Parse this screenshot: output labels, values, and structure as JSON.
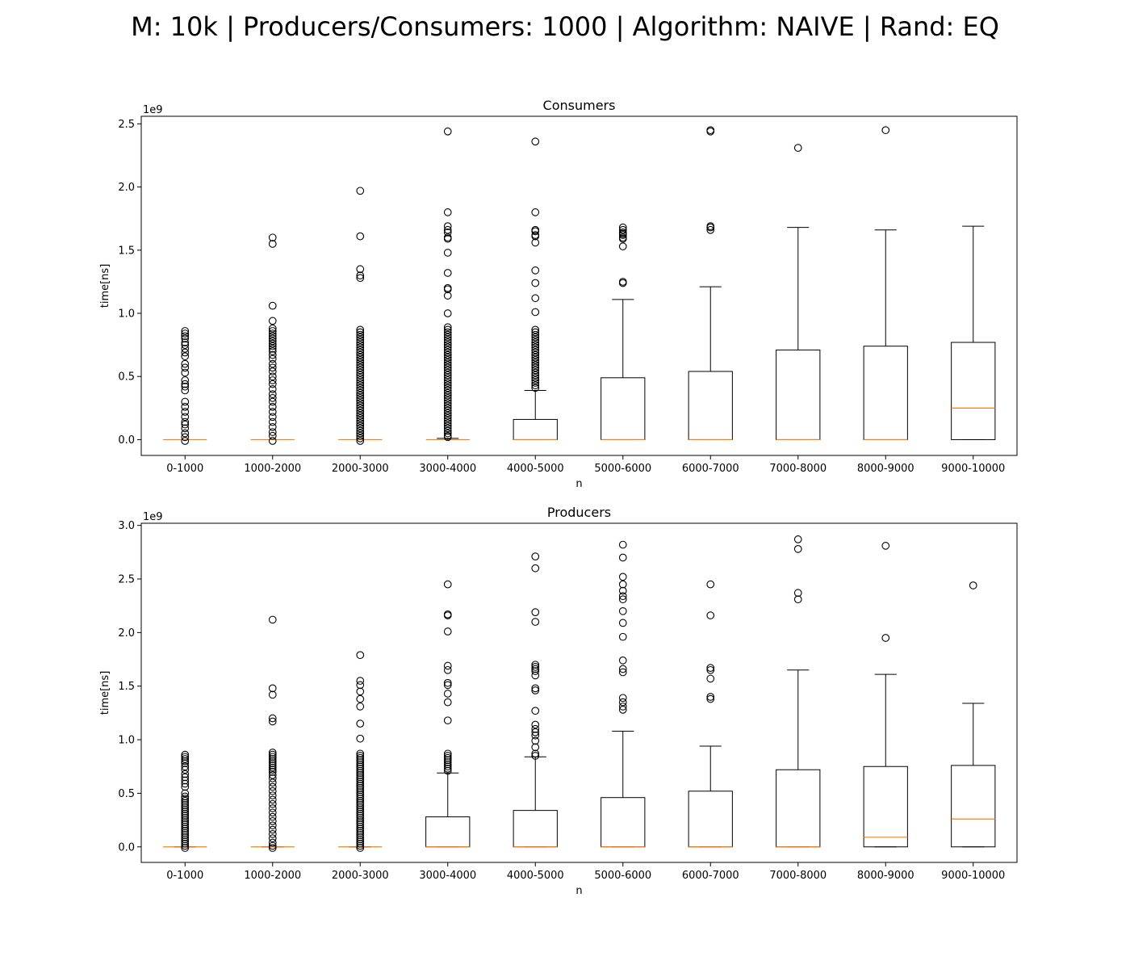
{
  "figure": {
    "suptitle": "M: 10k | Producers/Consumers: 1000 | Algorithm: NAIVE | Rand: EQ"
  },
  "colors": {
    "box_edge": "#000000",
    "median": "#ff7f0e",
    "flier_edge": "#000000",
    "background": "#ffffff"
  },
  "chart_data": [
    {
      "type": "boxplot",
      "title": "Consumers",
      "xlabel": "n",
      "ylabel": "time[ns]",
      "y_offset_text": "1e9",
      "ylim": [
        -0.125,
        2.56
      ],
      "yticks": [
        0.0,
        0.5,
        1.0,
        1.5,
        2.0,
        2.5
      ],
      "ytick_labels": [
        "0.0",
        "0.5",
        "1.0",
        "1.5",
        "2.0",
        "2.5"
      ],
      "categories": [
        "0-1000",
        "1000-2000",
        "2000-3000",
        "3000-4000",
        "4000-5000",
        "5000-6000",
        "6000-7000",
        "7000-8000",
        "8000-9000",
        "9000-10000"
      ],
      "boxes": [
        {
          "whislo": 0.0,
          "q1": 0.0,
          "med": 0.0,
          "q3": 0.0,
          "whishi": 0.0,
          "fliers": [
            0.86,
            0.84,
            0.82,
            0.8,
            0.77,
            0.75,
            0.72,
            0.69,
            0.66,
            0.6,
            0.57,
            0.53,
            0.47,
            0.44,
            0.42,
            0.39,
            0.3,
            0.26,
            0.22,
            0.18,
            0.14,
            0.12,
            0.09,
            0.05,
            0.02,
            -0.01
          ]
        },
        {
          "whislo": 0.0,
          "q1": 0.0,
          "med": 0.0,
          "q3": 0.0,
          "whishi": 0.0,
          "fliers": [
            1.6,
            1.55,
            1.06,
            0.94,
            0.88,
            0.86,
            0.84,
            0.82,
            0.8,
            0.78,
            0.76,
            0.74,
            0.72,
            0.7,
            0.67,
            0.64,
            0.6,
            0.57,
            0.54,
            0.5,
            0.47,
            0.44,
            0.4,
            0.36,
            0.33,
            0.3,
            0.26,
            0.22,
            0.18,
            0.14,
            0.1,
            0.06,
            0.03,
            -0.01
          ]
        },
        {
          "whislo": 0.0,
          "q1": 0.0,
          "med": 0.0,
          "q3": 0.0,
          "whishi": 0.0,
          "fliers": [
            1.97,
            1.61,
            1.35,
            1.3,
            1.28,
            0.87,
            0.85,
            0.83,
            0.81,
            0.79,
            0.77,
            0.75,
            0.73,
            0.71,
            0.69,
            0.67,
            0.65,
            0.63,
            0.61,
            0.59,
            0.57,
            0.55,
            0.53,
            0.51,
            0.49,
            0.47,
            0.45,
            0.43,
            0.41,
            0.39,
            0.37,
            0.35,
            0.33,
            0.31,
            0.29,
            0.27,
            0.25,
            0.23,
            0.21,
            0.19,
            0.17,
            0.15,
            0.13,
            0.11,
            0.09,
            0.07,
            0.05,
            0.03,
            0.01,
            -0.01
          ]
        },
        {
          "whislo": 0.0,
          "q1": 0.0,
          "med": 0.0,
          "q3": 0.0,
          "whishi": 0.01,
          "fliers": [
            2.44,
            1.8,
            1.69,
            1.66,
            1.64,
            1.6,
            1.59,
            1.48,
            1.32,
            1.2,
            1.19,
            1.14,
            1.0,
            0.89,
            0.87,
            0.85,
            0.83,
            0.81,
            0.79,
            0.77,
            0.75,
            0.73,
            0.71,
            0.69,
            0.67,
            0.65,
            0.63,
            0.61,
            0.59,
            0.57,
            0.55,
            0.53,
            0.51,
            0.49,
            0.47,
            0.45,
            0.43,
            0.41,
            0.39,
            0.37,
            0.35,
            0.33,
            0.31,
            0.29,
            0.27,
            0.25,
            0.23,
            0.21,
            0.19,
            0.17,
            0.15,
            0.13,
            0.11,
            0.09,
            0.07,
            0.05,
            0.03,
            0.02
          ]
        },
        {
          "whislo": 0.0,
          "q1": 0.0,
          "med": 0.0,
          "q3": 0.16,
          "whishi": 0.39,
          "fliers": [
            2.36,
            1.8,
            1.66,
            1.65,
            1.62,
            1.61,
            1.56,
            1.34,
            1.24,
            1.12,
            1.01,
            0.87,
            0.85,
            0.83,
            0.81,
            0.79,
            0.77,
            0.75,
            0.73,
            0.71,
            0.69,
            0.67,
            0.65,
            0.63,
            0.61,
            0.59,
            0.57,
            0.55,
            0.53,
            0.51,
            0.49,
            0.47,
            0.45,
            0.43,
            0.41
          ]
        },
        {
          "whislo": 0.0,
          "q1": 0.0,
          "med": 0.0,
          "q3": 0.49,
          "whishi": 1.11,
          "fliers": [
            1.68,
            1.66,
            1.64,
            1.63,
            1.62,
            1.6,
            1.59,
            1.53,
            1.25,
            1.24
          ]
        },
        {
          "whislo": 0.0,
          "q1": 0.0,
          "med": 0.0,
          "q3": 0.54,
          "whishi": 1.21,
          "fliers": [
            2.45,
            2.44,
            1.69,
            1.68,
            1.66
          ]
        },
        {
          "whislo": 0.0,
          "q1": 0.0,
          "med": 0.0,
          "q3": 0.71,
          "whishi": 1.68,
          "fliers": [
            2.31
          ]
        },
        {
          "whislo": 0.0,
          "q1": 0.0,
          "med": 0.0,
          "q3": 0.74,
          "whishi": 1.66,
          "fliers": [
            2.45
          ]
        },
        {
          "whislo": 0.0,
          "q1": 0.0,
          "med": 0.25,
          "q3": 0.77,
          "whishi": 1.69,
          "fliers": []
        }
      ]
    },
    {
      "type": "boxplot",
      "title": "Producers",
      "xlabel": "n",
      "ylabel": "time[ns]",
      "y_offset_text": "1e9",
      "ylim": [
        -0.145,
        3.02
      ],
      "yticks": [
        0.0,
        0.5,
        1.0,
        1.5,
        2.0,
        2.5,
        3.0
      ],
      "ytick_labels": [
        "0.0",
        "0.5",
        "1.0",
        "1.5",
        "2.0",
        "2.5",
        "3.0"
      ],
      "categories": [
        "0-1000",
        "1000-2000",
        "2000-3000",
        "3000-4000",
        "4000-5000",
        "5000-6000",
        "6000-7000",
        "7000-8000",
        "8000-9000",
        "9000-10000"
      ],
      "boxes": [
        {
          "whislo": 0.0,
          "q1": 0.0,
          "med": 0.0,
          "q3": 0.0,
          "whishi": 0.0,
          "fliers": [
            0.86,
            0.84,
            0.82,
            0.8,
            0.78,
            0.75,
            0.72,
            0.68,
            0.65,
            0.62,
            0.59,
            0.56,
            0.5,
            0.47,
            0.45,
            0.43,
            0.41,
            0.39,
            0.37,
            0.35,
            0.33,
            0.31,
            0.29,
            0.27,
            0.25,
            0.23,
            0.21,
            0.19,
            0.17,
            0.15,
            0.13,
            0.11,
            0.09,
            0.07,
            0.05,
            0.03,
            0.01,
            -0.01
          ]
        },
        {
          "whislo": 0.0,
          "q1": 0.0,
          "med": 0.0,
          "q3": 0.0,
          "whishi": 0.0,
          "fliers": [
            2.12,
            1.48,
            1.42,
            1.2,
            1.17,
            0.88,
            0.86,
            0.84,
            0.82,
            0.8,
            0.78,
            0.76,
            0.74,
            0.72,
            0.7,
            0.67,
            0.64,
            0.6,
            0.56,
            0.52,
            0.48,
            0.44,
            0.4,
            0.36,
            0.32,
            0.28,
            0.24,
            0.2,
            0.16,
            0.12,
            0.08,
            0.04,
            0.01,
            -0.01
          ]
        },
        {
          "whislo": 0.0,
          "q1": 0.0,
          "med": 0.0,
          "q3": 0.0,
          "whishi": 0.0,
          "fliers": [
            1.79,
            1.55,
            1.51,
            1.45,
            1.38,
            1.31,
            1.15,
            1.01,
            0.87,
            0.85,
            0.83,
            0.81,
            0.79,
            0.77,
            0.75,
            0.73,
            0.71,
            0.69,
            0.67,
            0.65,
            0.63,
            0.61,
            0.59,
            0.57,
            0.55,
            0.53,
            0.51,
            0.49,
            0.47,
            0.45,
            0.43,
            0.41,
            0.39,
            0.37,
            0.35,
            0.33,
            0.31,
            0.29,
            0.27,
            0.25,
            0.23,
            0.21,
            0.19,
            0.17,
            0.15,
            0.13,
            0.11,
            0.09,
            0.07,
            0.05,
            0.03,
            0.01,
            -0.01
          ]
        },
        {
          "whislo": 0.0,
          "q1": 0.0,
          "med": 0.0,
          "q3": 0.28,
          "whishi": 0.69,
          "fliers": [
            2.45,
            2.17,
            2.16,
            2.01,
            1.69,
            1.65,
            1.53,
            1.51,
            1.43,
            1.35,
            1.18,
            0.87,
            0.85,
            0.83,
            0.81,
            0.79,
            0.77,
            0.75,
            0.73,
            0.71
          ]
        },
        {
          "whislo": 0.0,
          "q1": 0.0,
          "med": 0.0,
          "q3": 0.34,
          "whishi": 0.84,
          "fliers": [
            2.71,
            2.6,
            2.19,
            2.1,
            1.7,
            1.68,
            1.66,
            1.64,
            1.6,
            1.48,
            1.46,
            1.27,
            1.14,
            1.1,
            1.07,
            1.04,
            0.99,
            0.93,
            0.87,
            0.85
          ]
        },
        {
          "whislo": 0.0,
          "q1": 0.0,
          "med": 0.0,
          "q3": 0.46,
          "whishi": 1.08,
          "fliers": [
            2.82,
            2.7,
            2.52,
            2.45,
            2.39,
            2.34,
            2.31,
            2.2,
            2.09,
            1.96,
            1.74,
            1.66,
            1.63,
            1.39,
            1.35,
            1.31,
            1.28
          ]
        },
        {
          "whislo": 0.0,
          "q1": 0.0,
          "med": 0.0,
          "q3": 0.52,
          "whishi": 0.94,
          "fliers": [
            2.45,
            2.16,
            1.67,
            1.65,
            1.57,
            1.4,
            1.38
          ]
        },
        {
          "whislo": 0.0,
          "q1": 0.0,
          "med": 0.0,
          "q3": 0.72,
          "whishi": 1.65,
          "fliers": [
            2.87,
            2.78,
            2.37,
            2.31
          ]
        },
        {
          "whislo": 0.0,
          "q1": 0.0,
          "med": 0.09,
          "q3": 0.75,
          "whishi": 1.61,
          "fliers": [
            2.81,
            1.95
          ]
        },
        {
          "whislo": 0.0,
          "q1": 0.0,
          "med": 0.26,
          "q3": 0.76,
          "whishi": 1.34,
          "fliers": [
            2.44
          ]
        }
      ]
    }
  ]
}
